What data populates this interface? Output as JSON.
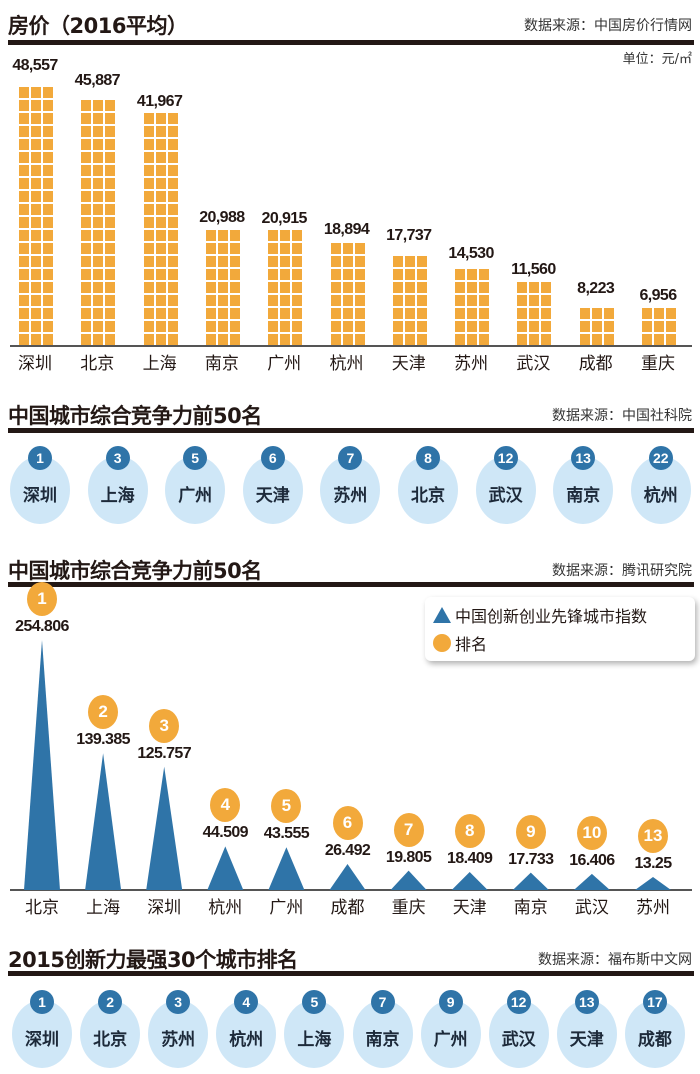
{
  "chart_data": [
    {
      "type": "bar",
      "title": "房价（2016平均）",
      "source": "数据来源：中国房价行情网",
      "unit": "单位：元/㎡",
      "categories": [
        "深圳",
        "北京",
        "上海",
        "南京",
        "广州",
        "杭州",
        "天津",
        "苏州",
        "武汉",
        "成都",
        "重庆"
      ],
      "values": [
        48557,
        45887,
        41967,
        20988,
        20915,
        18894,
        17737,
        14530,
        11560,
        8223,
        6956
      ],
      "labels": [
        "48,557",
        "45,887",
        "41,967",
        "20,988",
        "20,915",
        "18,894",
        "17,737",
        "14,530",
        "11,560",
        "8,223",
        "6,956"
      ],
      "color": "#f2a93b"
    },
    {
      "type": "table",
      "title": "中国城市综合竞争力前50名",
      "source": "数据来源：中国社科院",
      "ranks": [
        "1",
        "3",
        "5",
        "6",
        "7",
        "8",
        "12",
        "13",
        "22"
      ],
      "cities": [
        "深圳",
        "上海",
        "广州",
        "天津",
        "苏州",
        "北京",
        "武汉",
        "南京",
        "杭州"
      ]
    },
    {
      "type": "bar",
      "title": "中国城市综合竞争力前50名",
      "source": "数据来源：腾讯研究院",
      "legend": [
        "中国创新创业先锋城市指数",
        "排名"
      ],
      "legend_position": "top-right",
      "categories": [
        "北京",
        "上海",
        "深圳",
        "杭州",
        "广州",
        "成都",
        "重庆",
        "天津",
        "南京",
        "武汉",
        "苏州"
      ],
      "values": [
        254.806,
        139.385,
        125.757,
        44.509,
        43.555,
        26.492,
        19.805,
        18.409,
        17.733,
        16.406,
        13.25
      ],
      "labels": [
        "254.806",
        "139.385",
        "125.757",
        "44.509",
        "43.555",
        "26.492",
        "19.805",
        "18.409",
        "17.733",
        "16.406",
        "13.25"
      ],
      "ranks": [
        "1",
        "2",
        "3",
        "4",
        "5",
        "6",
        "7",
        "8",
        "9",
        "10",
        "13"
      ],
      "color": "#2f74a8",
      "rank_color": "#f2a93b"
    },
    {
      "type": "table",
      "title": "2015创新力最强30个城市排名",
      "source": "数据来源：福布斯中文网",
      "ranks": [
        "1",
        "2",
        "3",
        "4",
        "5",
        "7",
        "9",
        "12",
        "13",
        "17"
      ],
      "cities": [
        "深圳",
        "北京",
        "苏州",
        "杭州",
        "上海",
        "南京",
        "广州",
        "武汉",
        "天津",
        "成都"
      ]
    }
  ]
}
